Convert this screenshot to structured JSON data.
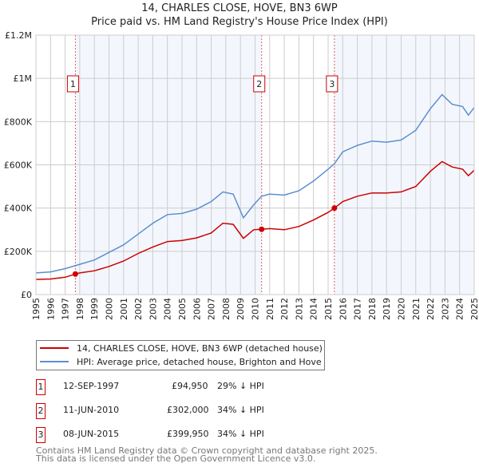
{
  "chart_data": {
    "type": "line",
    "title": "14, CHARLES CLOSE, HOVE, BN3 6WP",
    "subtitle": "Price paid vs. HM Land Registry's House Price Index (HPI)",
    "xlim": [
      1995,
      2025
    ],
    "ylim": [
      0,
      1200000
    ],
    "yticks": [
      {
        "v": 0,
        "label": "£0"
      },
      {
        "v": 200000,
        "label": "£200K"
      },
      {
        "v": 400000,
        "label": "£400K"
      },
      {
        "v": 600000,
        "label": "£600K"
      },
      {
        "v": 800000,
        "label": "£800K"
      },
      {
        "v": 1000000,
        "label": "£1M"
      },
      {
        "v": 1200000,
        "label": "£1.2M"
      }
    ],
    "xticks": [
      1995,
      1996,
      1997,
      1998,
      1999,
      2000,
      2001,
      2002,
      2003,
      2004,
      2005,
      2006,
      2007,
      2008,
      2009,
      2010,
      2011,
      2012,
      2013,
      2014,
      2015,
      2016,
      2017,
      2018,
      2019,
      2020,
      2021,
      2022,
      2023,
      2024,
      2025
    ],
    "series": [
      {
        "name": "14, CHARLES CLOSE, HOVE, BN3 6WP (detached house)",
        "color": "#cc0000",
        "x": [
          1995,
          1996,
          1997,
          1997.7,
          1998,
          1999,
          2000,
          2001,
          2002,
          2003,
          2004,
          2005,
          2006,
          2007,
          2007.8,
          2008.5,
          2009.2,
          2009.9,
          2010.45,
          2011,
          2012,
          2013,
          2014,
          2015,
          2015.43,
          2016,
          2017,
          2018,
          2019,
          2020,
          2021,
          2022,
          2022.8,
          2023.5,
          2024.2,
          2024.6,
          2025
        ],
        "y": [
          70000,
          72000,
          80000,
          94950,
          100000,
          110000,
          130000,
          155000,
          190000,
          220000,
          245000,
          250000,
          262000,
          285000,
          330000,
          325000,
          260000,
          300000,
          302000,
          305000,
          300000,
          315000,
          345000,
          380000,
          399950,
          430000,
          455000,
          470000,
          470000,
          475000,
          500000,
          570000,
          615000,
          590000,
          580000,
          550000,
          575000
        ]
      },
      {
        "name": "HPI: Average price, detached house, Brighton and Hove",
        "color": "#5b8fd0",
        "x": [
          1995,
          1996,
          1997,
          1998,
          1999,
          2000,
          2001,
          2002,
          2003,
          2004,
          2005,
          2006,
          2007,
          2007.8,
          2008.5,
          2009.2,
          2009.9,
          2010.45,
          2011,
          2012,
          2013,
          2014,
          2015,
          2015.43,
          2016,
          2017,
          2018,
          2019,
          2020,
          2021,
          2022,
          2022.8,
          2023.5,
          2024.2,
          2024.6,
          2025
        ],
        "y": [
          100000,
          105000,
          120000,
          140000,
          160000,
          195000,
          230000,
          280000,
          330000,
          370000,
          375000,
          395000,
          430000,
          475000,
          465000,
          355000,
          415000,
          455000,
          465000,
          460000,
          480000,
          525000,
          580000,
          605000,
          660000,
          690000,
          710000,
          705000,
          715000,
          760000,
          860000,
          925000,
          880000,
          870000,
          830000,
          865000
        ]
      }
    ],
    "sales": [
      {
        "n": "1",
        "x": 1997.7,
        "y": 94950,
        "date": "12-SEP-1997",
        "price": "£94,950",
        "hpi": "29% ↓ HPI"
      },
      {
        "n": "2",
        "x": 2010.45,
        "y": 302000,
        "date": "11-JUN-2010",
        "price": "£302,000",
        "hpi": "34% ↓ HPI"
      },
      {
        "n": "3",
        "x": 2015.43,
        "y": 399950,
        "date": "08-JUN-2015",
        "price": "£399,950",
        "hpi": "34% ↓ HPI"
      }
    ],
    "legend_position": "below"
  },
  "footer": {
    "line1": "Contains HM Land Registry data © Crown copyright and database right 2025.",
    "line2": "This data is licensed under the Open Government Licence v3.0."
  }
}
